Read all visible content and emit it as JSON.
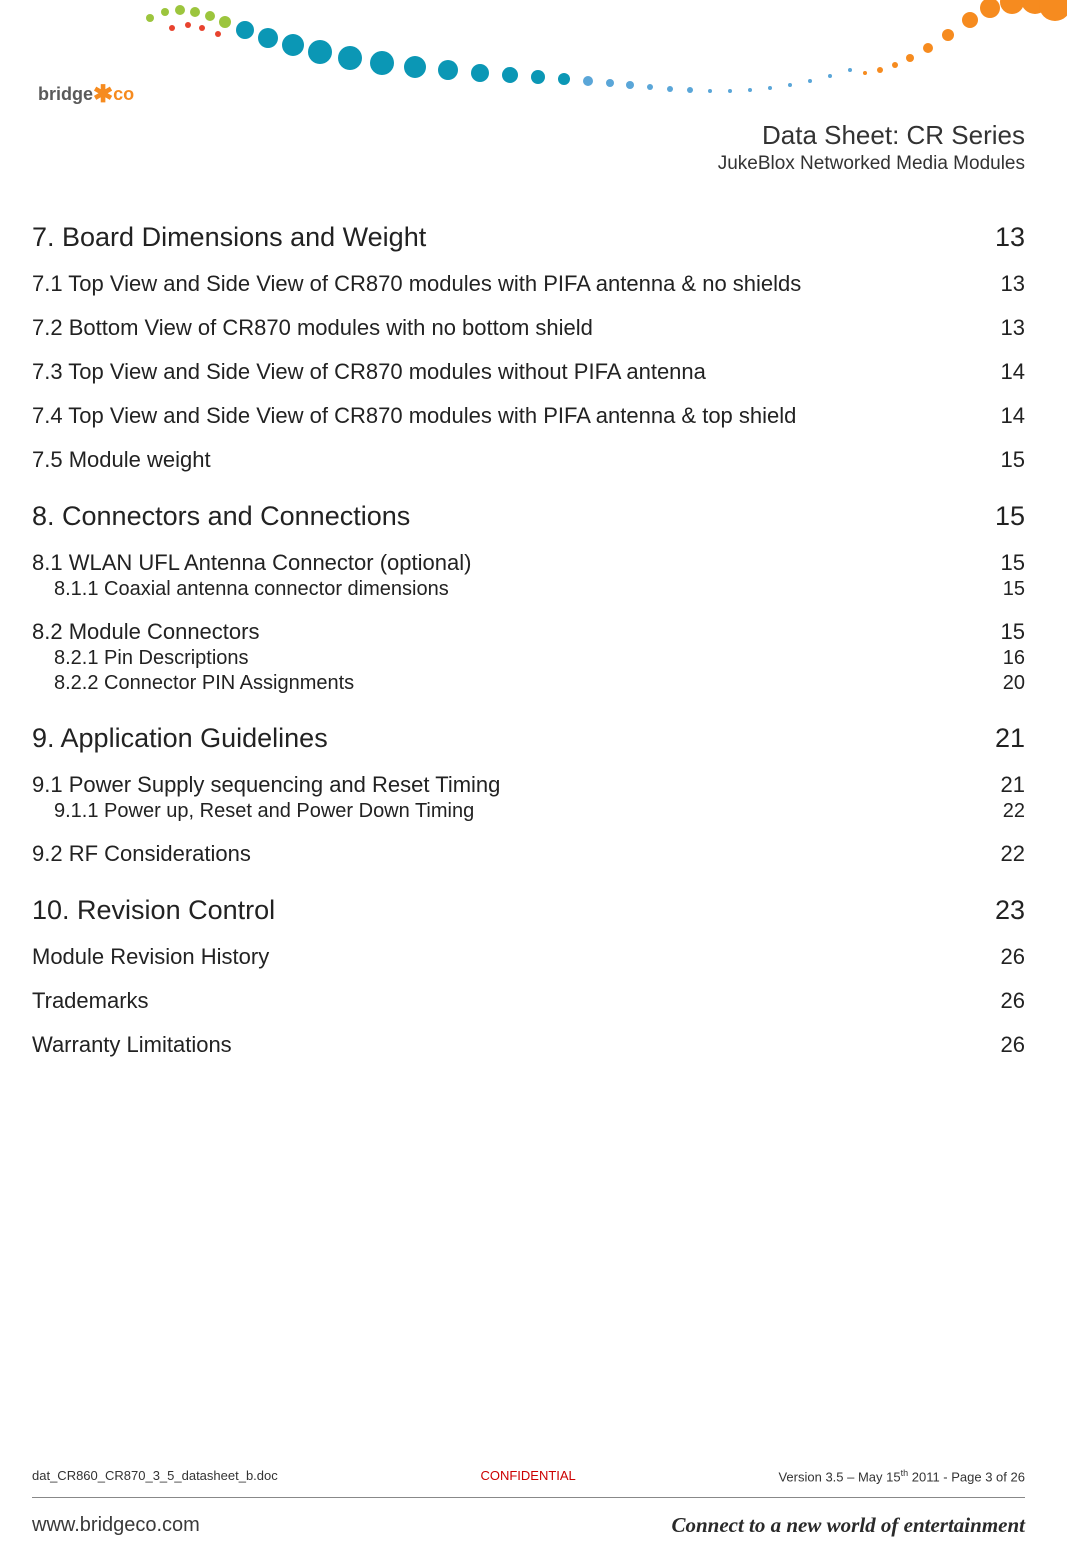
{
  "header": {
    "logo_bridge": "bridge",
    "logo_co": "co",
    "title_main": "Data Sheet: CR Series",
    "title_sub": "JukeBlox Networked Media Modules",
    "swoosh_colors": [
      "#9cc53d",
      "#5aa6d8",
      "#0b97b5",
      "#f68b1f",
      "#e8432e"
    ]
  },
  "toc": [
    {
      "level": 1,
      "title": "7. Board Dimensions and Weight",
      "page": "13"
    },
    {
      "level": 2,
      "title": "7.1 Top View and Side View of CR870 modules with PIFA antenna & no shields",
      "page": "13"
    },
    {
      "level": 2,
      "title": "7.2 Bottom View of CR870 modules with no bottom shield",
      "page": "13"
    },
    {
      "level": 2,
      "title": "7.3 Top View and Side View of CR870 modules without PIFA antenna",
      "page": "14"
    },
    {
      "level": 2,
      "title": "7.4 Top View and Side View of CR870 modules with PIFA antenna & top shield",
      "page": "14"
    },
    {
      "level": 2,
      "title": "7.5 Module weight",
      "page": "15"
    },
    {
      "level": 1,
      "title": "8. Connectors and Connections",
      "page": "15"
    },
    {
      "level": 2,
      "title": "8.1 WLAN UFL Antenna Connector (optional)",
      "page": "15"
    },
    {
      "level": 3,
      "title": "8.1.1 Coaxial antenna connector dimensions",
      "page": "15"
    },
    {
      "level": 2,
      "title": "8.2 Module Connectors",
      "page": "15"
    },
    {
      "level": 3,
      "title": "8.2.1 Pin Descriptions",
      "page": "16"
    },
    {
      "level": 3,
      "title": "8.2.2 Connector PIN Assignments",
      "page": "20"
    },
    {
      "level": 1,
      "title": "9. Application Guidelines",
      "page": "21"
    },
    {
      "level": 2,
      "title": "9.1 Power Supply sequencing and Reset Timing",
      "page": "21"
    },
    {
      "level": 3,
      "title": "9.1.1 Power up, Reset and Power Down Timing",
      "page": "22"
    },
    {
      "level": 2,
      "title": "9.2 RF Considerations",
      "page": "22"
    },
    {
      "level": 1,
      "title": "10. Revision Control",
      "page": "23"
    },
    {
      "level": 2,
      "title": "Module Revision History",
      "page": "26"
    },
    {
      "level": 2,
      "title": "Trademarks",
      "page": "26"
    },
    {
      "level": 2,
      "title": "Warranty Limitations",
      "page": "26"
    }
  ],
  "footer": {
    "left": "dat_CR860_CR870_3_5_datasheet_b.doc",
    "mid": "CONFIDENTIAL",
    "right_prefix": "Version 3.5 – May 15",
    "right_sup": "th",
    "right_suffix": " 2011 - Page 3 of 26",
    "url": "www.bridgeco.com",
    "slogan": "Connect to a new world of entertainment"
  },
  "colors": {
    "confidential": "#cc0000",
    "text": "#222222",
    "logo_orange": "#f68b1f",
    "logo_gray": "#5a5a5a"
  }
}
